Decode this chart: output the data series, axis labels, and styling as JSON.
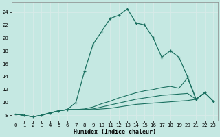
{
  "xlabel": "Humidex (Indice chaleur)",
  "bg_color": "#c5e8e2",
  "grid_color": "#b0d5cf",
  "line_color": "#1a7060",
  "xlim_min": -0.5,
  "xlim_max": 23.5,
  "ylim_min": 7.2,
  "ylim_max": 25.5,
  "xticks": [
    0,
    1,
    2,
    3,
    4,
    5,
    6,
    7,
    8,
    9,
    10,
    11,
    12,
    13,
    14,
    15,
    16,
    17,
    18,
    19,
    20,
    21,
    22,
    23
  ],
  "yticks": [
    8,
    10,
    12,
    14,
    16,
    18,
    20,
    22,
    24
  ],
  "line_main_x": [
    0,
    1,
    2,
    3,
    4,
    5,
    6,
    7,
    8,
    9,
    10,
    11,
    12,
    13,
    14,
    15,
    16,
    17,
    18,
    19,
    20,
    21,
    22,
    23
  ],
  "line_main_y": [
    8.2,
    8.0,
    7.8,
    8.0,
    8.4,
    8.7,
    8.9,
    10.0,
    14.8,
    19.0,
    21.0,
    23.0,
    23.5,
    24.5,
    22.3,
    22.0,
    20.0,
    17.0,
    18.0,
    17.0,
    14.0,
    10.5,
    11.5,
    10.2
  ],
  "line2_x": [
    0,
    1,
    2,
    3,
    4,
    5,
    6,
    7,
    8,
    9,
    10,
    11,
    12,
    13,
    14,
    15,
    16,
    17,
    18,
    19,
    20,
    21,
    22,
    23
  ],
  "line2_y": [
    8.2,
    8.0,
    7.8,
    8.0,
    8.4,
    8.7,
    8.9,
    8.9,
    9.0,
    9.3,
    9.8,
    10.2,
    10.7,
    11.1,
    11.5,
    11.8,
    12.0,
    12.3,
    12.5,
    12.2,
    13.8,
    10.5,
    11.5,
    10.2
  ],
  "line3_x": [
    0,
    1,
    2,
    3,
    4,
    5,
    6,
    7,
    8,
    9,
    10,
    11,
    12,
    13,
    14,
    15,
    16,
    17,
    18,
    19,
    20,
    21,
    22,
    23
  ],
  "line3_y": [
    8.2,
    8.0,
    7.8,
    8.0,
    8.4,
    8.7,
    8.9,
    8.9,
    8.9,
    9.0,
    9.3,
    9.6,
    9.9,
    10.2,
    10.5,
    10.7,
    10.9,
    11.1,
    11.2,
    11.3,
    11.4,
    10.5,
    11.5,
    10.2
  ],
  "line4_x": [
    0,
    1,
    2,
    3,
    4,
    5,
    6,
    7,
    8,
    9,
    10,
    11,
    12,
    13,
    14,
    15,
    16,
    17,
    18,
    19,
    20,
    21,
    22,
    23
  ],
  "line4_y": [
    8.2,
    8.0,
    7.8,
    8.0,
    8.4,
    8.7,
    8.9,
    8.9,
    8.9,
    8.9,
    9.0,
    9.1,
    9.3,
    9.5,
    9.7,
    9.8,
    9.9,
    10.0,
    10.1,
    10.2,
    10.3,
    10.5,
    11.5,
    10.2
  ]
}
